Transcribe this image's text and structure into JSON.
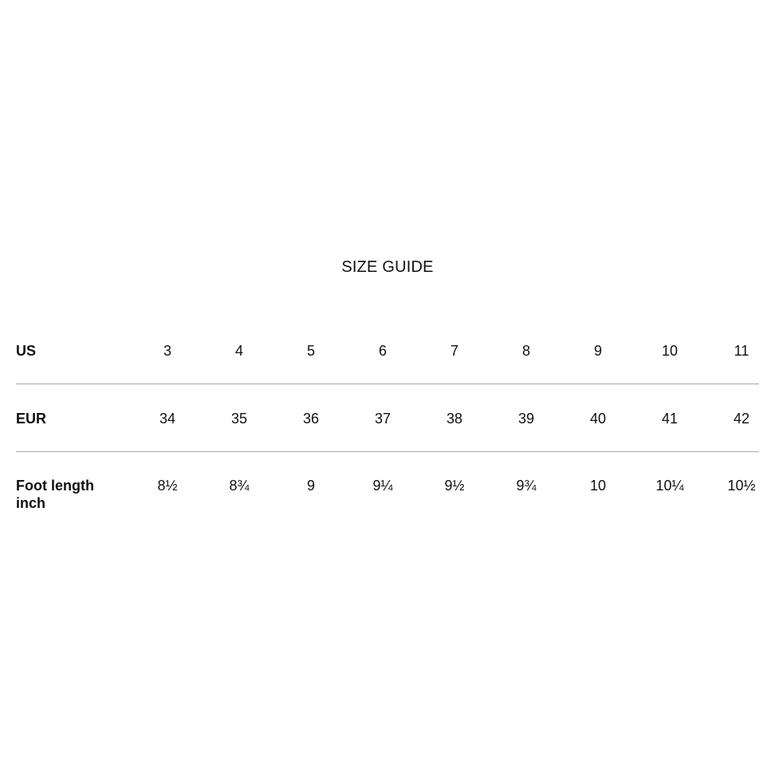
{
  "title": "SIZE GUIDE",
  "rows": [
    {
      "label": "US",
      "values": [
        "3",
        "4",
        "5",
        "6",
        "7",
        "8",
        "9",
        "10",
        "11"
      ]
    },
    {
      "label": "EUR",
      "values": [
        "34",
        "35",
        "36",
        "37",
        "38",
        "39",
        "40",
        "41",
        "42"
      ]
    },
    {
      "label": "Foot length inch",
      "values": [
        "8½",
        "8¾",
        "9",
        "9¼",
        "9½",
        "9¾",
        "10",
        "10¼",
        "10½"
      ]
    }
  ]
}
